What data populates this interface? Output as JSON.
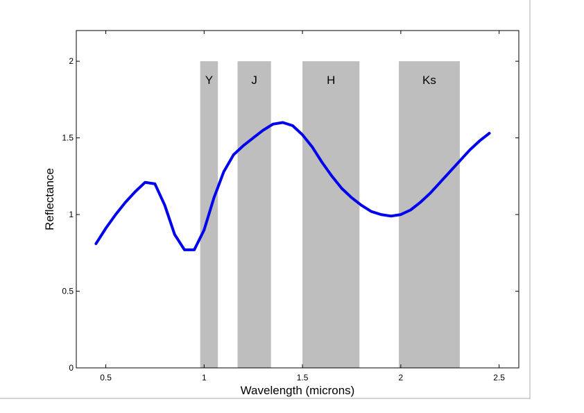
{
  "chart_data": {
    "type": "line",
    "title": "",
    "xlabel": "Wavelength (microns)",
    "ylabel": "Reflectance",
    "xlim": [
      0.35,
      2.6
    ],
    "ylim": [
      0,
      2.2
    ],
    "x_ticks": [
      0.5,
      1,
      1.5,
      2,
      2.5
    ],
    "x_tick_labels": [
      "0.5",
      "1",
      "1.5",
      "2",
      "2.5"
    ],
    "y_ticks": [
      0,
      0.5,
      1,
      1.5,
      2
    ],
    "y_tick_labels": [
      "0",
      "0.5",
      "1",
      "1.5",
      "2"
    ],
    "grid": false,
    "bands": [
      {
        "label": "Y",
        "x_start": 0.98,
        "x_end": 1.07,
        "y_top": 2.0
      },
      {
        "label": "J",
        "x_start": 1.17,
        "x_end": 1.34,
        "y_top": 2.0
      },
      {
        "label": "H",
        "x_start": 1.5,
        "x_end": 1.79,
        "y_top": 2.0
      },
      {
        "label": "Ks",
        "x_start": 1.99,
        "x_end": 2.3,
        "y_top": 2.0
      }
    ],
    "series": [
      {
        "color": "#0000ee",
        "x": [
          0.45,
          0.5,
          0.55,
          0.6,
          0.65,
          0.7,
          0.75,
          0.8,
          0.85,
          0.9,
          0.95,
          1.0,
          1.05,
          1.1,
          1.15,
          1.2,
          1.25,
          1.3,
          1.35,
          1.4,
          1.45,
          1.5,
          1.55,
          1.6,
          1.65,
          1.7,
          1.75,
          1.8,
          1.85,
          1.9,
          1.95,
          2.0,
          2.05,
          2.1,
          2.15,
          2.2,
          2.25,
          2.3,
          2.35,
          2.4,
          2.45
        ],
        "y": [
          0.81,
          0.91,
          1.0,
          1.08,
          1.15,
          1.21,
          1.2,
          1.06,
          0.87,
          0.77,
          0.77,
          0.9,
          1.11,
          1.28,
          1.39,
          1.45,
          1.5,
          1.55,
          1.59,
          1.6,
          1.58,
          1.52,
          1.44,
          1.34,
          1.25,
          1.17,
          1.11,
          1.06,
          1.02,
          1.0,
          0.99,
          1.0,
          1.03,
          1.08,
          1.14,
          1.21,
          1.28,
          1.35,
          1.42,
          1.48,
          1.53
        ]
      }
    ]
  }
}
